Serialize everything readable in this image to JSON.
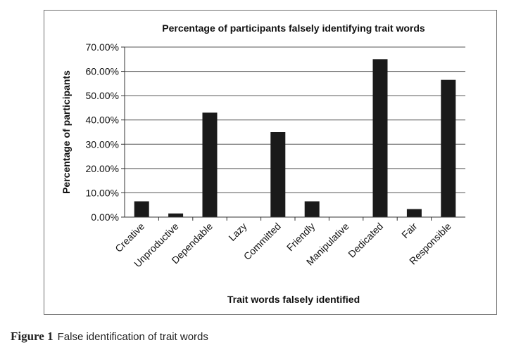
{
  "chart_data": {
    "type": "bar",
    "title": "Percentage of participants falsely identifying trait words",
    "xlabel": "Trait words falsely identified",
    "ylabel": "Percentage of participants",
    "categories": [
      "Creative",
      "Unproductive",
      "Dependable",
      "Lazy",
      "Committed",
      "Friendly",
      "Manipulative",
      "Dedicated",
      "Fair",
      "Responsible"
    ],
    "values": [
      6.5,
      1.5,
      43.0,
      0.0,
      35.0,
      6.5,
      0.0,
      65.0,
      3.3,
      56.5
    ],
    "ylim": [
      0,
      70
    ],
    "yticks": [
      "0.00%",
      "10.00%",
      "20.00%",
      "30.00%",
      "40.00%",
      "50.00%",
      "60.00%",
      "70.00%"
    ],
    "grid": true,
    "bar_color": "#1a1a1a",
    "grid_color": "#555555"
  },
  "caption": {
    "label": "Figure 1",
    "text": "False identification of trait words"
  }
}
